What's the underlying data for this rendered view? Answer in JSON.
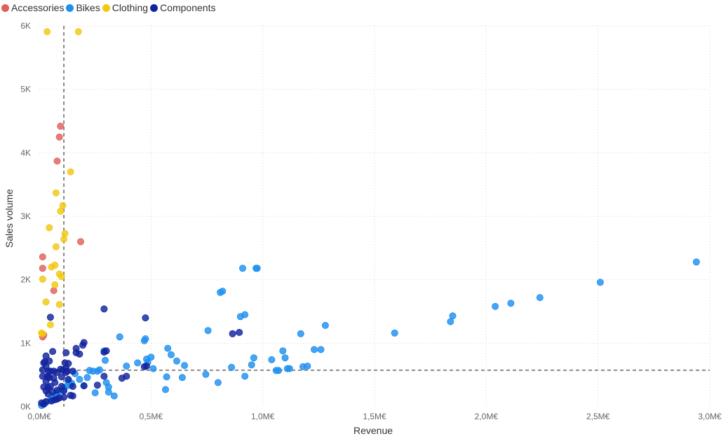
{
  "chart_data": {
    "type": "scatter",
    "xlabel": "Revenue",
    "ylabel": "Sales volume",
    "xlim": [
      0,
      3000000
    ],
    "ylim": [
      0,
      6000
    ],
    "x_ticks": [
      {
        "value": 0,
        "label": "0,0M€"
      },
      {
        "value": 500000,
        "label": "0,5M€"
      },
      {
        "value": 1000000,
        "label": "1,0M€"
      },
      {
        "value": 1500000,
        "label": "1,5M€"
      },
      {
        "value": 2000000,
        "label": "2,0M€"
      },
      {
        "value": 2500000,
        "label": "2,5M€"
      },
      {
        "value": 3000000,
        "label": "3,0M€"
      }
    ],
    "y_ticks": [
      {
        "value": 0,
        "label": "0K"
      },
      {
        "value": 1000,
        "label": "1K"
      },
      {
        "value": 2000,
        "label": "2K"
      },
      {
        "value": 3000,
        "label": "3K"
      },
      {
        "value": 4000,
        "label": "4K"
      },
      {
        "value": 5000,
        "label": "5K"
      },
      {
        "value": 6000,
        "label": "6K"
      }
    ],
    "grid": true,
    "legend_position": "top-left",
    "reference_lines": {
      "x": 110000,
      "y": 575
    },
    "series": [
      {
        "name": "Accessories",
        "color": "#E0605A",
        "points": [
          [
            95000,
            4420
          ],
          [
            90000,
            4250
          ],
          [
            80000,
            3870
          ],
          [
            185000,
            2600
          ],
          [
            15000,
            2360
          ],
          [
            15000,
            2180
          ],
          [
            65000,
            1830
          ],
          [
            20000,
            1130
          ],
          [
            15000,
            1100
          ],
          [
            40000,
            480
          ]
        ]
      },
      {
        "name": "Bikes",
        "color": "#1E90F0",
        "points": [
          [
            2940000,
            2280
          ],
          [
            2510000,
            1960
          ],
          [
            2240000,
            1720
          ],
          [
            2110000,
            1630
          ],
          [
            2040000,
            1580
          ],
          [
            1850000,
            1430
          ],
          [
            1840000,
            1340
          ],
          [
            1590000,
            1160
          ],
          [
            1280000,
            1280
          ],
          [
            1260000,
            900
          ],
          [
            1230000,
            900
          ],
          [
            1200000,
            640
          ],
          [
            1180000,
            630
          ],
          [
            1170000,
            1150
          ],
          [
            1120000,
            600
          ],
          [
            1110000,
            600
          ],
          [
            1100000,
            770
          ],
          [
            1090000,
            880
          ],
          [
            1070000,
            570
          ],
          [
            1060000,
            570
          ],
          [
            1040000,
            740
          ],
          [
            970000,
            2180
          ],
          [
            975000,
            2180
          ],
          [
            910000,
            2180
          ],
          [
            920000,
            1450
          ],
          [
            900000,
            1420
          ],
          [
            960000,
            770
          ],
          [
            950000,
            660
          ],
          [
            920000,
            480
          ],
          [
            860000,
            620
          ],
          [
            820000,
            1820
          ],
          [
            810000,
            1800
          ],
          [
            800000,
            380
          ],
          [
            755000,
            1200
          ],
          [
            745000,
            510
          ],
          [
            650000,
            650
          ],
          [
            640000,
            460
          ],
          [
            615000,
            720
          ],
          [
            590000,
            820
          ],
          [
            575000,
            920
          ],
          [
            570000,
            470
          ],
          [
            565000,
            270
          ],
          [
            510000,
            600
          ],
          [
            500000,
            780
          ],
          [
            485000,
            700
          ],
          [
            480000,
            750
          ],
          [
            475000,
            1070
          ],
          [
            470000,
            1040
          ],
          [
            440000,
            690
          ],
          [
            390000,
            640
          ],
          [
            360000,
            1100
          ],
          [
            335000,
            170
          ],
          [
            310000,
            230
          ],
          [
            310000,
            310
          ],
          [
            300000,
            380
          ],
          [
            295000,
            730
          ],
          [
            290000,
            880
          ],
          [
            270000,
            580
          ],
          [
            260000,
            560
          ],
          [
            250000,
            220
          ],
          [
            240000,
            560
          ],
          [
            225000,
            570
          ],
          [
            215000,
            460
          ],
          [
            200000,
            330
          ],
          [
            180000,
            430
          ],
          [
            160000,
            520
          ],
          [
            145000,
            370
          ],
          [
            140000,
            340
          ],
          [
            130000,
            400
          ],
          [
            125000,
            330
          ],
          [
            110000,
            300
          ],
          [
            105000,
            270
          ],
          [
            90000,
            250
          ],
          [
            80000,
            200
          ],
          [
            70000,
            180
          ],
          [
            60000,
            130
          ],
          [
            50000,
            100
          ],
          [
            30000,
            70
          ],
          [
            20000,
            40
          ],
          [
            10000,
            20
          ]
        ]
      },
      {
        "name": "Clothing",
        "color": "#F2C811",
        "points": [
          [
            35000,
            5910
          ],
          [
            175000,
            5910
          ],
          [
            140000,
            3700
          ],
          [
            75000,
            3370
          ],
          [
            105000,
            3170
          ],
          [
            95000,
            3080
          ],
          [
            115000,
            2730
          ],
          [
            45000,
            2820
          ],
          [
            110000,
            2640
          ],
          [
            75000,
            2520
          ],
          [
            70000,
            2230
          ],
          [
            55000,
            2200
          ],
          [
            90000,
            2090
          ],
          [
            100000,
            2050
          ],
          [
            15000,
            2010
          ],
          [
            70000,
            1920
          ],
          [
            30000,
            1650
          ],
          [
            90000,
            1610
          ],
          [
            50000,
            1290
          ],
          [
            10000,
            1160
          ],
          [
            15000,
            1150
          ]
        ]
      },
      {
        "name": "Components",
        "color": "#12239E",
        "points": [
          [
            290000,
            1540
          ],
          [
            475000,
            1400
          ],
          [
            50000,
            1410
          ],
          [
            895000,
            1170
          ],
          [
            865000,
            1150
          ],
          [
            200000,
            1010
          ],
          [
            195000,
            970
          ],
          [
            165000,
            920
          ],
          [
            300000,
            880
          ],
          [
            290000,
            860
          ],
          [
            180000,
            830
          ],
          [
            60000,
            870
          ],
          [
            30000,
            800
          ],
          [
            25000,
            710
          ],
          [
            45000,
            720
          ],
          [
            120000,
            850
          ],
          [
            115000,
            690
          ],
          [
            95000,
            590
          ],
          [
            105000,
            580
          ],
          [
            120000,
            610
          ],
          [
            130000,
            680
          ],
          [
            125000,
            560
          ],
          [
            80000,
            540
          ],
          [
            65000,
            560
          ],
          [
            50000,
            560
          ],
          [
            40000,
            560
          ],
          [
            30000,
            640
          ],
          [
            20000,
            690
          ],
          [
            15000,
            580
          ],
          [
            15000,
            480
          ],
          [
            35000,
            470
          ],
          [
            45000,
            460
          ],
          [
            30000,
            400
          ],
          [
            65000,
            450
          ],
          [
            70000,
            380
          ],
          [
            50000,
            320
          ],
          [
            40000,
            300
          ],
          [
            20000,
            310
          ],
          [
            30000,
            250
          ],
          [
            60000,
            230
          ],
          [
            80000,
            260
          ],
          [
            110000,
            250
          ],
          [
            140000,
            180
          ],
          [
            110000,
            150
          ],
          [
            90000,
            140
          ],
          [
            70000,
            110
          ],
          [
            55000,
            90
          ],
          [
            30000,
            80
          ],
          [
            20000,
            40
          ],
          [
            10000,
            60
          ],
          [
            40000,
            200
          ],
          [
            150000,
            320
          ],
          [
            200000,
            330
          ],
          [
            260000,
            340
          ],
          [
            290000,
            480
          ],
          [
            370000,
            450
          ],
          [
            390000,
            480
          ],
          [
            470000,
            630
          ],
          [
            480000,
            640
          ],
          [
            150000,
            170
          ],
          [
            120000,
            540
          ],
          [
            100000,
            470
          ],
          [
            80000,
            120
          ],
          [
            100000,
            320
          ],
          [
            150000,
            560
          ],
          [
            165000,
            850
          ],
          [
            130000,
            430
          ]
        ]
      }
    ]
  }
}
